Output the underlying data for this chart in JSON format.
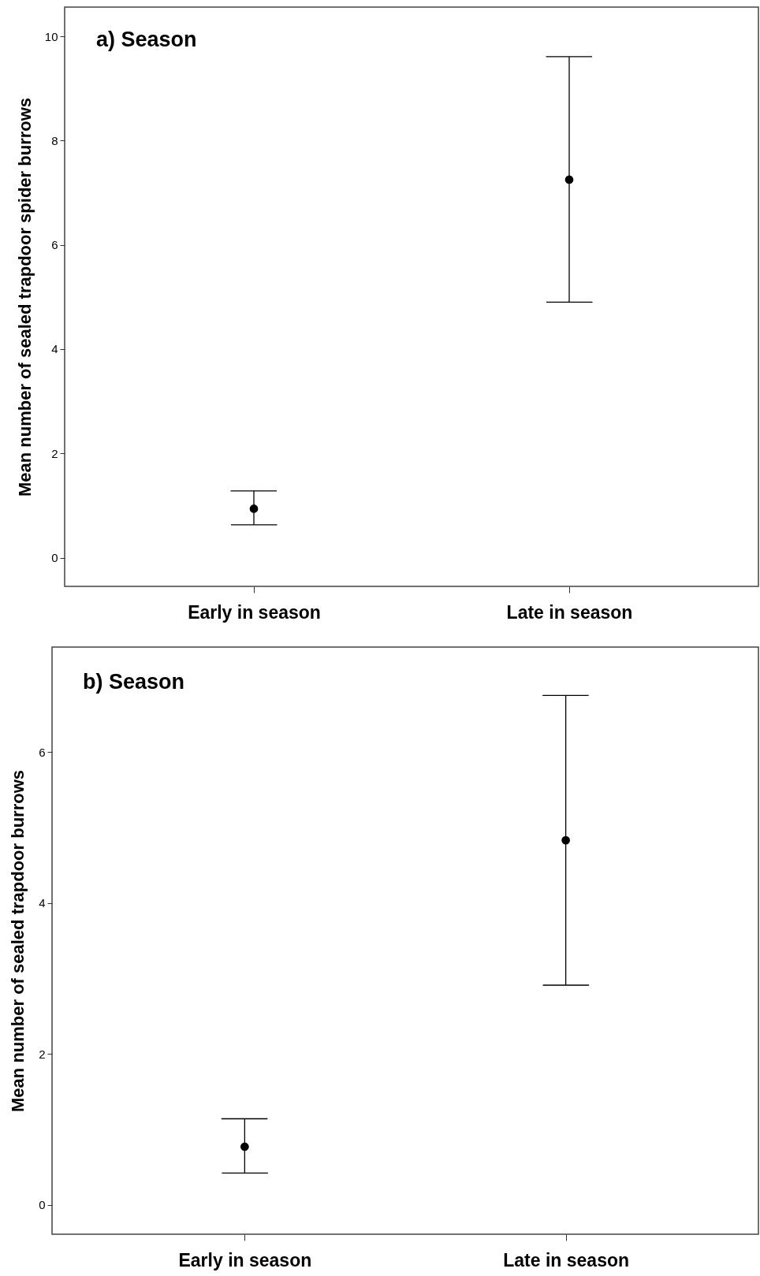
{
  "chart_data": [
    {
      "type": "scatter",
      "title": "a) Season",
      "ylabel": "Mean number of sealed trapdoor spider burrows",
      "categories": [
        "Early in season",
        "Late in season"
      ],
      "values": [
        0.94,
        7.25
      ],
      "errors": [
        [
          0.63,
          1.28
        ],
        [
          4.9,
          9.61
        ]
      ],
      "color": "#000000",
      "ylim": [
        -0.55,
        10.56
      ],
      "yticks": [
        0,
        2,
        4,
        6,
        8,
        10
      ],
      "marker": "circle"
    },
    {
      "type": "scatter",
      "title": "b) Season",
      "ylabel": "Mean number of sealed trapdoor burrows",
      "categories": [
        "Early in season",
        "Late in season"
      ],
      "values": [
        0.77,
        4.83
      ],
      "errors": [
        [
          0.42,
          1.14
        ],
        [
          2.91,
          6.75
        ]
      ],
      "color": "#000000",
      "ylim": [
        -0.39,
        7.39
      ],
      "yticks": [
        0,
        2,
        4,
        6
      ],
      "marker": "circle"
    }
  ]
}
